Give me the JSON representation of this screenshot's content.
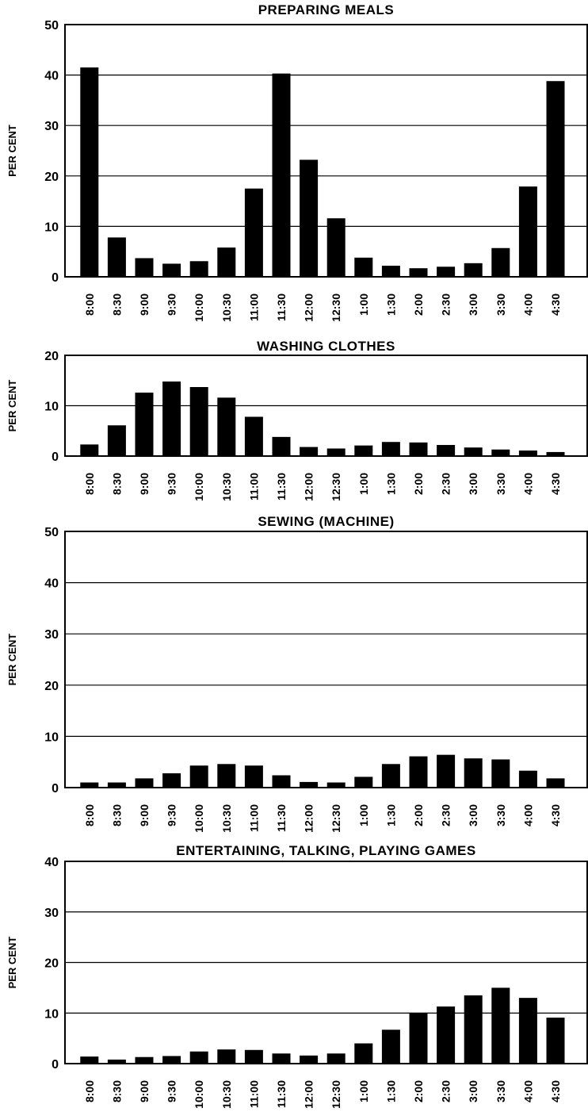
{
  "chart_data": [
    {
      "type": "bar",
      "title": "PREPARING MEALS",
      "ylabel": "PER CENT",
      "ylim": [
        0,
        50
      ],
      "yticks": [
        "0",
        "10",
        "20",
        "30",
        "40",
        "50"
      ],
      "grid": true,
      "categories": [
        "8:00",
        "8:30",
        "9:00",
        "9:30",
        "10:00",
        "10:30",
        "11:00",
        "11:30",
        "12:00",
        "12:30",
        "1:00",
        "1:30",
        "2:00",
        "2:30",
        "3:00",
        "3:30",
        "4:00",
        "4:30"
      ],
      "values": [
        41.5,
        7.8,
        3.7,
        2.6,
        3.1,
        5.8,
        17.5,
        40.3,
        23.2,
        11.6,
        3.8,
        2.2,
        1.7,
        2.0,
        2.7,
        5.7,
        17.9,
        38.8
      ]
    },
    {
      "type": "bar",
      "title": "WASHING CLOTHES",
      "ylabel": "PER CENT",
      "ylim": [
        0,
        20
      ],
      "yticks": [
        "0",
        "10",
        "20"
      ],
      "grid": true,
      "categories": [
        "8:00",
        "8:30",
        "9:00",
        "9:30",
        "10:00",
        "10:30",
        "11:00",
        "11:30",
        "12:00",
        "12:30",
        "1:00",
        "1:30",
        "2:00",
        "2:30",
        "3:00",
        "3:30",
        "4:00",
        "4:30"
      ],
      "values": [
        2.3,
        6.1,
        12.6,
        14.8,
        13.7,
        11.6,
        7.8,
        3.8,
        1.8,
        1.5,
        2.1,
        2.8,
        2.7,
        2.2,
        1.7,
        1.3,
        1.1,
        0.8
      ]
    },
    {
      "type": "bar",
      "title": "SEWING (MACHINE)",
      "ylabel": "PER CENT",
      "ylim": [
        0,
        50
      ],
      "yticks": [
        "0",
        "10",
        "20",
        "30",
        "40",
        "50"
      ],
      "grid": true,
      "categories": [
        "8:00",
        "8:30",
        "9:00",
        "9:30",
        "10:00",
        "10:30",
        "11:00",
        "11:30",
        "12:00",
        "12:30",
        "1:00",
        "1:30",
        "2:00",
        "2:30",
        "3:00",
        "3:30",
        "4:00",
        "4:30"
      ],
      "values": [
        1.0,
        1.0,
        1.8,
        2.8,
        4.3,
        4.6,
        4.3,
        2.4,
        1.1,
        1.0,
        2.1,
        4.6,
        6.1,
        6.4,
        5.7,
        5.5,
        3.3,
        1.8
      ]
    },
    {
      "type": "bar",
      "title": "ENTERTAINING, TALKING, PLAYING GAMES",
      "ylabel": "PER CENT",
      "ylim": [
        0,
        40
      ],
      "yticks": [
        "0",
        "10",
        "20",
        "30",
        "40"
      ],
      "grid": true,
      "categories": [
        "8:00",
        "8:30",
        "9:00",
        "9:30",
        "10:00",
        "10:30",
        "11:00",
        "11:30",
        "12:00",
        "12:30",
        "1:00",
        "1:30",
        "2:00",
        "2:30",
        "3:00",
        "3:30",
        "4:00",
        "4:30"
      ],
      "values": [
        1.4,
        0.8,
        1.3,
        1.5,
        2.4,
        2.8,
        2.7,
        2.0,
        1.6,
        2.0,
        4.0,
        6.7,
        10.0,
        11.3,
        13.5,
        15.0,
        13.0,
        9.1
      ]
    }
  ]
}
